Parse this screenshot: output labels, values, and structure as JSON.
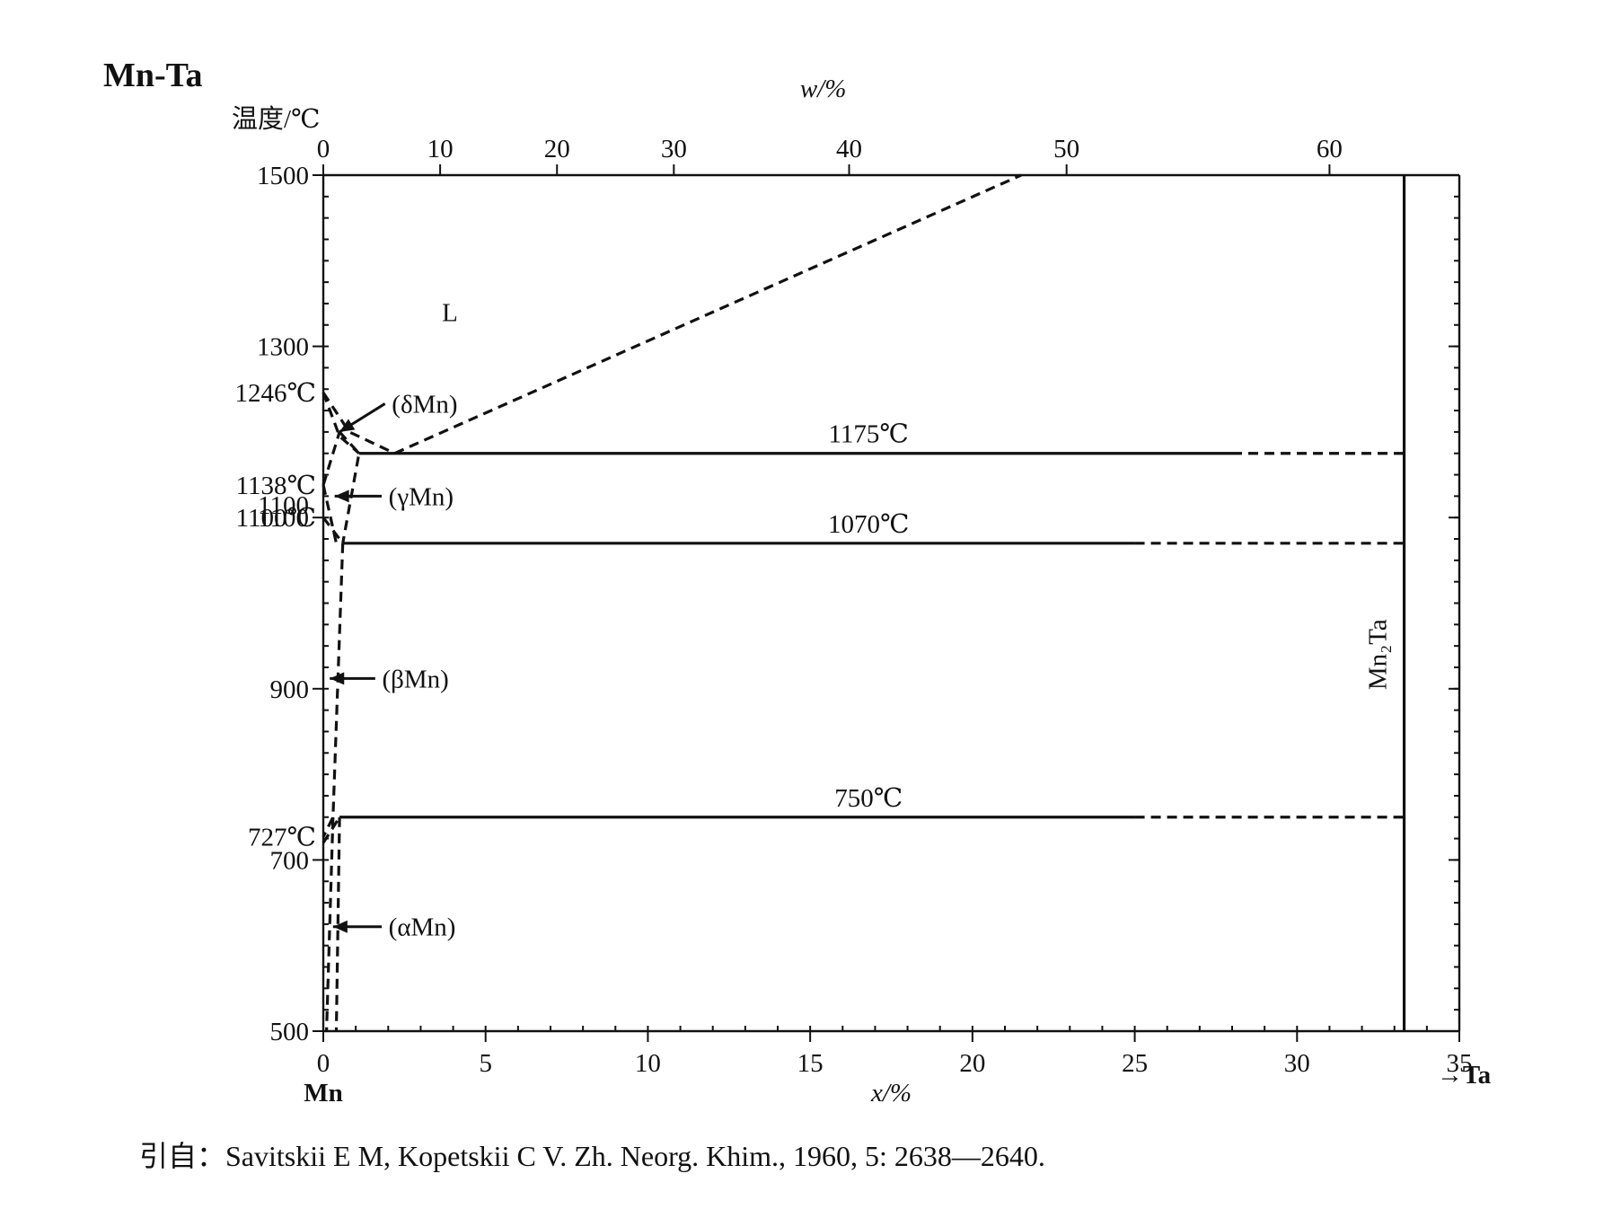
{
  "chart_data": {
    "type": "phase-diagram",
    "title": "Mn-Ta",
    "ylabel": "温度/℃",
    "ylim": [
      500,
      1500
    ],
    "y_ticks": [
      500,
      700,
      900,
      1100,
      1300,
      1500
    ],
    "xlabel": "x/%",
    "xlim": [
      0,
      35
    ],
    "x_ticks": [
      0,
      5,
      10,
      15,
      20,
      25,
      30,
      35
    ],
    "top_axis_label": "w/%",
    "top_ticks": [
      0,
      10,
      20,
      30,
      40,
      50,
      60
    ],
    "left_end_label": "Mn",
    "right_end_label": "→Ta",
    "special_temps": [
      {
        "label": "1246℃",
        "y": 1246
      },
      {
        "label": "1138℃",
        "y": 1138
      },
      {
        "label": "1100℃",
        "y": 1100
      },
      {
        "label": "727℃",
        "y": 727
      }
    ],
    "extra_tick_label": {
      "label": "1100",
      "y": 1100
    },
    "isotherms": [
      {
        "label": "1175℃",
        "y": 1175,
        "x_solid": [
          1.1,
          28
        ],
        "x_dashed": [
          28,
          33.3
        ]
      },
      {
        "label": "1070℃",
        "y": 1070,
        "x_solid": [
          0.6,
          25
        ],
        "x_dashed": [
          25,
          33.3
        ]
      },
      {
        "label": "750℃",
        "y": 750,
        "x_solid": [
          0.5,
          25
        ],
        "x_dashed": [
          25,
          33.3
        ]
      }
    ],
    "compound": {
      "label": "Mn₂Ta",
      "x": 33.3
    },
    "region_labels": [
      {
        "label": "L",
        "x": 3.9,
        "y": 1340
      },
      {
        "label": "(δMn)",
        "x": 2.0,
        "y": 1233
      },
      {
        "label": "(γMn)",
        "x": 1.9,
        "y": 1125
      },
      {
        "label": "(βMn)",
        "x": 1.7,
        "y": 912
      },
      {
        "label": "(αMn)",
        "x": 1.9,
        "y": 622
      }
    ],
    "phase_lines": [
      {
        "style": "dash",
        "points": [
          [
            0,
            1246
          ],
          [
            0.8,
            1200
          ],
          [
            2.2,
            1175
          ]
        ]
      },
      {
        "style": "dash",
        "points": [
          [
            2.2,
            1175
          ],
          [
            21.5,
            1500
          ]
        ]
      },
      {
        "style": "dash",
        "points": [
          [
            0,
            1246
          ],
          [
            0.5,
            1195
          ],
          [
            1.1,
            1175
          ]
        ]
      },
      {
        "style": "dash",
        "points": [
          [
            0,
            1138
          ],
          [
            0.5,
            1200
          ]
        ]
      },
      {
        "style": "dash",
        "points": [
          [
            0.5,
            1200
          ],
          [
            1.1,
            1175
          ],
          [
            0.6,
            1070
          ]
        ]
      },
      {
        "style": "dash",
        "points": [
          [
            0,
            1138
          ],
          [
            0.4,
            1070
          ]
        ]
      },
      {
        "style": "dash",
        "points": [
          [
            0,
            1100
          ],
          [
            0.6,
            1070
          ]
        ]
      },
      {
        "style": "dash",
        "points": [
          [
            0.6,
            1070
          ],
          [
            0.3,
            750
          ],
          [
            0,
            727
          ]
        ]
      },
      {
        "style": "dash",
        "points": [
          [
            0,
            720
          ],
          [
            0.5,
            750
          ]
        ]
      },
      {
        "style": "dash",
        "points": [
          [
            0.5,
            750
          ],
          [
            0.4,
            500
          ]
        ]
      },
      {
        "style": "dash",
        "points": [
          [
            0.3,
            750
          ],
          [
            0.1,
            500
          ]
        ]
      }
    ]
  },
  "citation": "引自：Savitskii E M, Kopetskii C V. Zh. Neorg. Khim., 1960, 5: 2638—2640."
}
